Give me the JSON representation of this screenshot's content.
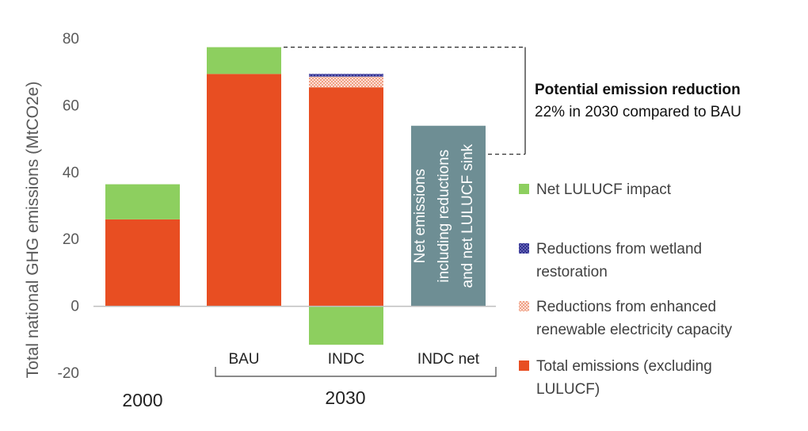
{
  "chart_data": {
    "type": "bar",
    "stacked": true,
    "categories": [
      "",
      "BAU",
      "INDC",
      "INDC net"
    ],
    "groups": [
      {
        "label": "2000",
        "categories": [
          ""
        ]
      },
      {
        "label": "2030",
        "categories": [
          "BAU",
          "INDC",
          "INDC net"
        ]
      }
    ],
    "ylabel": "Total national GHG emissions  (MtCO2e)",
    "ylim": [
      -20,
      80
    ],
    "yticks": [
      -20,
      0,
      20,
      40,
      60,
      80
    ],
    "grid": false,
    "legend_position": "right",
    "series": [
      {
        "name": "Total emissions (excluding LULUCF)",
        "color": "#E84E22",
        "values": [
          26,
          69.5,
          65.5,
          null
        ]
      },
      {
        "name": "Reductions from enhanced renewable electricity capacity",
        "color": "#F6B9A5",
        "pattern": "dots",
        "values": [
          null,
          null,
          3.2,
          null
        ]
      },
      {
        "name": "Reductions from wetland restoration",
        "color": "#2E2E8F",
        "pattern": "dots",
        "values": [
          null,
          null,
          0.8,
          null
        ]
      },
      {
        "name": "Net LULUCF impact",
        "color": "#8DCF5F",
        "values": [
          10.5,
          8,
          -11.5,
          null
        ]
      },
      {
        "name": "",
        "color": "#6E8E94",
        "values": [
          null,
          null,
          null,
          54
        ]
      }
    ],
    "bar_text": "Net emissions including reductions and net LULUCF sink",
    "annotation": {
      "title": "Potential emission reduction",
      "text": "22% in 2030 compared to BAU",
      "from_value": 77.5,
      "to_value": 45.5
    },
    "legend": [
      {
        "label": "Net LULUCF impact",
        "color": "#8DCF5F",
        "pattern": "solid"
      },
      {
        "label": "Reductions from wetland restoration",
        "color": "#2E2E8F",
        "pattern": "dots"
      },
      {
        "label": "Reductions from enhanced renewable electricity capacity",
        "color": "#F6B9A5",
        "pattern": "dots"
      },
      {
        "label": "Total emissions (excluding LULUCF)",
        "color": "#E84E22",
        "pattern": "solid"
      }
    ]
  }
}
